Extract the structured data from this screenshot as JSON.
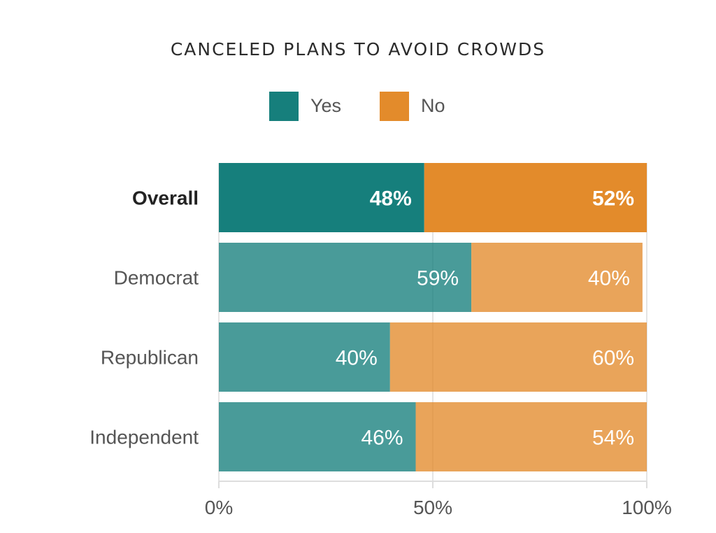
{
  "chart_data": {
    "type": "bar",
    "orientation": "horizontal",
    "stacked": true,
    "title": "CANCELED PLANS TO AVOID CROWDS",
    "categories": [
      "Overall",
      "Democrat",
      "Republican",
      "Independent"
    ],
    "highlight_category": "Overall",
    "series": [
      {
        "name": "Yes",
        "values": [
          48,
          59,
          40,
          46
        ],
        "labels": [
          "48%",
          "59%",
          "40%",
          "46%"
        ],
        "color": "#167f7c"
      },
      {
        "name": "No",
        "values": [
          52,
          40,
          60,
          54
        ],
        "labels": [
          "52%",
          "40%",
          "60%",
          "54%"
        ],
        "color": "#e38b2b"
      }
    ],
    "xlim": [
      0,
      100
    ],
    "xticks": [
      0,
      50,
      100
    ],
    "xtick_labels": [
      "0%",
      "50%",
      "100%"
    ],
    "grid": true,
    "legend_position": "top-center"
  }
}
